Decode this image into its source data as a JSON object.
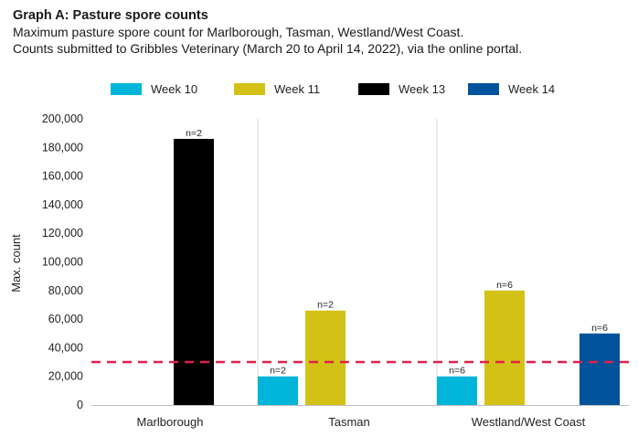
{
  "chart_data": {
    "type": "bar",
    "title": "Graph A: Pasture spore counts",
    "subtitle_lines": [
      "Maximum pasture spore count for Marlborough, Tasman, Westland/West Coast.",
      "Counts submitted to Gribbles Veterinary (March 20 to April 14, 2022), via the online portal."
    ],
    "ylabel": "Max. count",
    "ylim": [
      0,
      200000
    ],
    "yticks": [
      0,
      20000,
      40000,
      60000,
      80000,
      100000,
      120000,
      140000,
      160000,
      180000,
      200000
    ],
    "ytick_labels": [
      "0",
      "20,000",
      "40,000",
      "60,000",
      "80,000",
      "100,000",
      "120,000",
      "140,000",
      "160,000",
      "180,000",
      "200,000"
    ],
    "categories": [
      "Marlborough",
      "Tasman",
      "Westland/West Coast"
    ],
    "series": [
      {
        "name": "Week 10",
        "color": "#00b5d9",
        "values": [
          null,
          20000,
          20000
        ],
        "labels": [
          "",
          "n=2",
          "n=6"
        ]
      },
      {
        "name": "Week 11",
        "color": "#d4c116",
        "values": [
          null,
          66000,
          80000
        ],
        "labels": [
          "",
          "n=2",
          "n=6"
        ]
      },
      {
        "name": "Week 13",
        "color": "#000000",
        "values": [
          186000,
          null,
          null
        ],
        "labels": [
          "n=2",
          "",
          ""
        ]
      },
      {
        "name": "Week 14",
        "color": "#00539b",
        "values": [
          null,
          null,
          50000
        ],
        "labels": [
          "",
          "",
          "n=6"
        ]
      }
    ],
    "reference_line": {
      "value": 30000,
      "color": "#e0204a",
      "style": "dashed"
    },
    "legend_position": "top",
    "grid": false
  }
}
